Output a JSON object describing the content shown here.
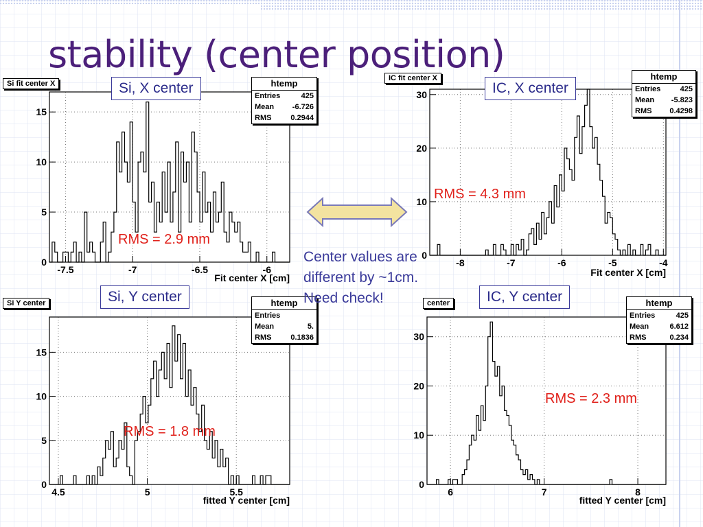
{
  "slide": {
    "title": "stability (center position)",
    "note": "Center values are different by ~1cm. Need check!"
  },
  "colors": {
    "title": "#4b1f7a",
    "rms": "#e0201a",
    "callout": "#2b2b8a",
    "arrow_fill": "#f3e3a0",
    "arrow_stroke": "#7a7ab8"
  },
  "icons": [
    "double-arrow-icon"
  ],
  "panels": [
    {
      "hist_title": "Si fit center X",
      "callout": "Si, X center",
      "rms_text": "RMS = 2.9 mm",
      "stats": {
        "title": "htemp",
        "entries": "425",
        "mean": "-6.726",
        "rms": "0.2944"
      }
    },
    {
      "hist_title": "IC fit center X",
      "callout": "IC, X center",
      "rms_text": "RMS = 4.3 mm",
      "stats": {
        "title": "htemp",
        "entries": "425",
        "mean": "-5.823",
        "rms": "0.4298"
      }
    },
    {
      "hist_title": "Si Y center",
      "callout": "Si, Y center",
      "rms_text": "RMS = 1.8 mm",
      "stats": {
        "title": "htemp",
        "entries": "",
        "mean": "5.",
        "rms": "0.1836"
      }
    },
    {
      "hist_title": "center",
      "callout": "IC, Y center",
      "rms_text": "RMS = 2.3 mm",
      "stats": {
        "title": "htemp",
        "entries": "425",
        "mean": "6.612",
        "rms": "0.234"
      }
    }
  ],
  "labels": {
    "entries": "Entries",
    "mean": "Mean",
    "rms": "RMS"
  },
  "chart_data": [
    {
      "type": "bar",
      "xlabel": "Fit center X [cm]",
      "ylabel": "",
      "xlim": [
        -7.62,
        -5.83
      ],
      "ylim": [
        0,
        17
      ],
      "xticks": [
        -7.5,
        -7,
        -6.5,
        -6
      ],
      "xtick_labels": [
        "-7.5",
        "-7",
        "-6.5",
        "-6"
      ],
      "yticks": [
        0,
        5,
        10,
        15
      ],
      "ytick_labels": [
        "0",
        "5",
        "10",
        "15"
      ],
      "grid": true,
      "bin_start": -7.62,
      "bin_width": 0.02,
      "counts": [
        0,
        2,
        1,
        0,
        0,
        1,
        1,
        0,
        1,
        2,
        0,
        1,
        0,
        5,
        1,
        2,
        1,
        0,
        0,
        2,
        4,
        0,
        1,
        3,
        5,
        12,
        9,
        13,
        10,
        8,
        14,
        6,
        3,
        10,
        11,
        9,
        16,
        6,
        8,
        3,
        6,
        4,
        9,
        5,
        10,
        4,
        7,
        12,
        3,
        11,
        8,
        10,
        4,
        13,
        11,
        7,
        4,
        9,
        5,
        6,
        3,
        7,
        4,
        5,
        8,
        3,
        2,
        5,
        4,
        3,
        4,
        2,
        1,
        1,
        2,
        0,
        0,
        1,
        0,
        0,
        0,
        0,
        0,
        1,
        0,
        0,
        0,
        0,
        0,
        0
      ]
    },
    {
      "type": "bar",
      "xlabel": "Fit center X [cm]",
      "ylabel": "",
      "xlim": [
        -8.6,
        -3.95
      ],
      "ylim": [
        0,
        31
      ],
      "xticks": [
        -8,
        -7,
        -6,
        -5,
        -4
      ],
      "xtick_labels": [
        "-8",
        "-7",
        "-6",
        "-5",
        "-4"
      ],
      "yticks": [
        0,
        10,
        20,
        30
      ],
      "ytick_labels": [
        "0",
        "10",
        "20",
        "30"
      ],
      "grid": true,
      "bin_start": -8.6,
      "bin_width": 0.05,
      "counts": [
        0,
        0,
        0,
        2,
        0,
        0,
        0,
        0,
        0,
        0,
        0,
        0,
        0,
        0,
        0,
        0,
        0,
        0,
        0,
        0,
        0,
        0,
        1,
        0,
        0,
        2,
        0,
        0,
        2,
        1,
        0,
        0,
        2,
        0,
        2,
        1,
        3,
        0,
        1,
        4,
        5,
        2,
        6,
        3,
        8,
        4,
        7,
        10,
        6,
        13,
        9,
        15,
        12,
        20,
        18,
        16,
        14,
        22,
        26,
        19,
        24,
        28,
        31,
        24,
        20,
        22,
        17,
        14,
        11,
        6,
        8,
        7,
        4,
        3,
        1,
        0,
        1,
        0,
        2,
        0,
        1,
        0,
        0,
        2,
        0,
        1,
        2,
        0,
        0,
        1,
        0,
        0,
        0,
        0
      ]
    },
    {
      "type": "bar",
      "xlabel": "fitted Y center [cm]",
      "ylabel": "",
      "xlim": [
        4.45,
        5.8
      ],
      "ylim": [
        0,
        19
      ],
      "xticks": [
        4.5,
        5,
        5.5
      ],
      "xtick_labels": [
        "4.5",
        "5",
        "5.5"
      ],
      "yticks": [
        0,
        5,
        10,
        15
      ],
      "ytick_labels": [
        "0",
        "5",
        "10",
        "15"
      ],
      "grid": true,
      "bin_start": 4.45,
      "bin_width": 0.015,
      "counts": [
        0,
        0,
        0,
        0,
        1,
        0,
        0,
        0,
        0,
        1,
        0,
        0,
        0,
        0,
        1,
        0,
        1,
        0,
        2,
        1,
        3,
        5,
        4,
        6,
        2,
        3,
        5,
        4,
        7,
        2,
        1,
        0,
        5,
        6,
        8,
        10,
        7,
        9,
        12,
        14,
        10,
        13,
        15,
        12,
        16,
        11,
        18,
        14,
        17,
        12,
        16,
        10,
        13,
        9,
        11,
        8,
        6,
        9,
        5,
        4,
        6,
        3,
        5,
        2,
        4,
        2,
        3,
        0,
        1,
        0,
        1,
        0,
        0,
        0,
        0,
        0,
        1,
        0,
        0,
        1,
        0,
        1,
        1,
        0,
        0,
        0,
        0,
        0,
        0,
        0
      ]
    },
    {
      "type": "bar",
      "xlabel": "fitted Y center [cm]",
      "ylabel": "",
      "xlim": [
        5.75,
        8.3
      ],
      "ylim": [
        0,
        34
      ],
      "xticks": [
        6,
        7,
        8
      ],
      "xtick_labels": [
        "6",
        "7",
        "8"
      ],
      "yticks": [
        0,
        10,
        20,
        30
      ],
      "ytick_labels": [
        "0",
        "10",
        "20",
        "30"
      ],
      "grid": true,
      "bin_start": 5.75,
      "bin_width": 0.025,
      "counts": [
        0,
        0,
        0,
        0,
        1,
        0,
        0,
        0,
        0,
        1,
        0,
        1,
        1,
        0,
        0,
        2,
        3,
        5,
        8,
        10,
        9,
        14,
        11,
        16,
        13,
        20,
        30,
        33,
        25,
        22,
        24,
        18,
        20,
        15,
        14,
        12,
        9,
        8,
        6,
        5,
        3,
        2,
        3,
        1,
        2,
        1,
        0,
        1,
        0,
        0,
        0,
        0,
        0,
        0,
        0,
        0,
        0,
        0,
        0,
        0,
        0,
        0,
        0,
        0,
        0,
        0,
        0,
        0,
        0,
        0,
        0,
        0,
        0,
        0,
        0,
        0,
        0,
        0,
        1,
        0,
        0,
        0,
        0,
        0,
        0,
        0,
        0,
        0,
        0,
        0,
        0,
        0,
        0,
        0,
        0,
        0,
        0,
        0,
        0,
        0,
        0,
        0
      ]
    }
  ]
}
